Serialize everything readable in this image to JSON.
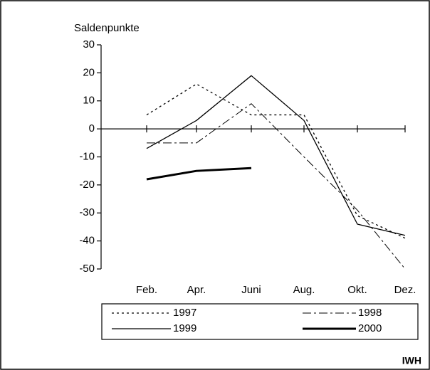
{
  "chart_data": {
    "type": "line",
    "y_label": "Saldenpunkte",
    "categories": [
      "Feb.",
      "Apr.",
      "Juni",
      "Aug.",
      "Okt.",
      "Dez."
    ],
    "series": [
      {
        "name": "1997",
        "color": "#000000",
        "line_style": "dotted",
        "line_width": 1.3,
        "values": [
          5,
          16,
          5,
          5,
          -31,
          -39
        ]
      },
      {
        "name": "1998",
        "color": "#000000",
        "line_style": "dashdot",
        "line_width": 1,
        "values": [
          -5,
          -5,
          9,
          -10,
          -29,
          -50
        ]
      },
      {
        "name": "1999",
        "color": "#000000",
        "line_style": "solid",
        "line_width": 1.3,
        "values": [
          -7,
          3,
          19,
          3,
          -34,
          -38
        ]
      },
      {
        "name": "2000",
        "color": "#000000",
        "line_style": "solid",
        "line_width": 3,
        "values": [
          -18,
          -15,
          -14,
          null,
          null,
          null
        ]
      }
    ],
    "ylim": [
      -50,
      30
    ],
    "yticks": [
      -50,
      -40,
      -30,
      -20,
      -10,
      0,
      10,
      20,
      30
    ],
    "grid": false,
    "legend": "bottom",
    "source": "IWH"
  }
}
